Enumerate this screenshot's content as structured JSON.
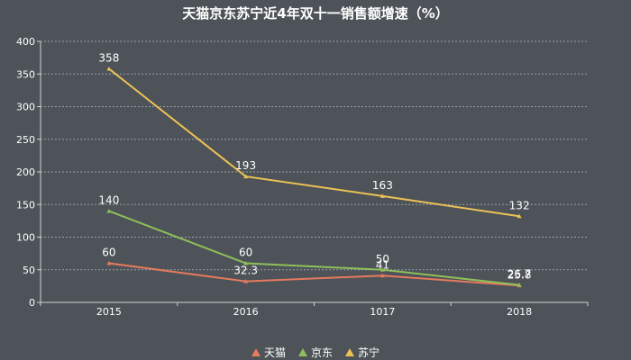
{
  "chart_data": {
    "type": "line",
    "title": "天猫京东苏宁近4年双十一销售额增速（%）",
    "categories": [
      "2015",
      "2016",
      "1017",
      "2018"
    ],
    "ylim": [
      0,
      400
    ],
    "yticks": [
      0,
      50,
      100,
      150,
      200,
      250,
      300,
      350,
      400
    ],
    "grid": true,
    "legend_position": "bottom",
    "series": [
      {
        "name": "天猫",
        "color": "#e47a5e",
        "values": [
          60,
          32.3,
          41,
          25.8
        ],
        "labels": [
          "60",
          "32.3",
          "41",
          "25.8"
        ]
      },
      {
        "name": "京东",
        "color": "#8fbf5a",
        "values": [
          140,
          60,
          50,
          26.7
        ],
        "labels": [
          "140",
          "60",
          "50",
          "26.7"
        ]
      },
      {
        "name": "苏宁",
        "color": "#ecc255",
        "values": [
          358,
          193,
          163,
          132
        ],
        "labels": [
          "358",
          "193",
          "163",
          "132"
        ]
      }
    ]
  }
}
